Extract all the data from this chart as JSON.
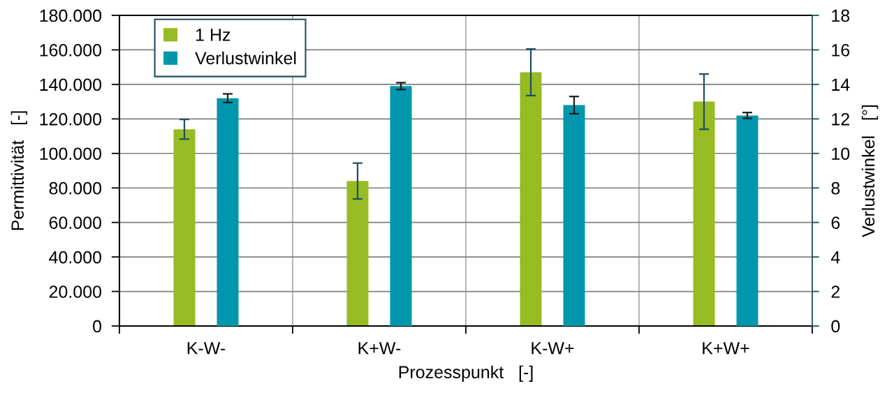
{
  "chart_data": {
    "type": "bar",
    "categories": [
      "K-W-",
      "K+W-",
      "K-W+",
      "K+W+"
    ],
    "xlabel": "Prozesspunkt   [-]",
    "ylabel": "Permittivität   [-]",
    "y2label": "Verlustwinkel   [°]",
    "series": [
      {
        "name": "1 Hz",
        "color": "#97bb23",
        "values": [
          114000,
          84000,
          147000,
          130000
        ],
        "errors": [
          5700,
          10400,
          13500,
          16000
        ]
      },
      {
        "name": "Verlustwinkel",
        "color": "#0097ac",
        "values": [
          13.2,
          13.9,
          12.8,
          12.2
        ],
        "errors": [
          0.25,
          0.2,
          0.5,
          0.17
        ],
        "axis": "y2"
      }
    ],
    "ylim": [
      0,
      180000
    ],
    "yticks": [
      0,
      {
        "value": 20000,
        "label": "20.000"
      },
      {
        "value": 40000,
        "label": "40.000"
      },
      {
        "value": 60000,
        "label": "60.000"
      },
      {
        "value": 80000,
        "label": "80.000"
      },
      {
        "value": 100000,
        "label": "100.000"
      },
      {
        "value": 120000,
        "label": "120.000"
      },
      {
        "value": 140000,
        "label": "140.000"
      },
      {
        "value": 160000,
        "label": "160.000"
      },
      {
        "value": 180000,
        "label": "180.000"
      }
    ],
    "y2lim": [
      0,
      18
    ],
    "y2ticks": [
      0,
      2,
      4,
      6,
      8,
      10,
      12,
      14,
      16,
      18
    ],
    "grid": true,
    "legend": "top left"
  }
}
